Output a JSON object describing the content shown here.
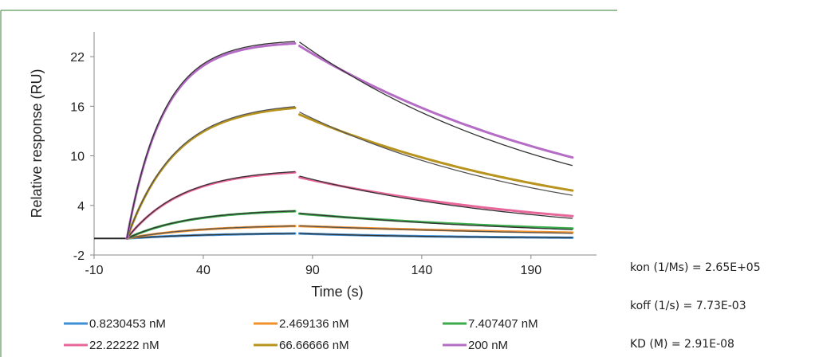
{
  "chart_data": {
    "type": "line",
    "title": "",
    "xlabel": "Time (s)",
    "ylabel": "Relative response (RU)",
    "xlim": [
      -10,
      220
    ],
    "ylim": [
      -2,
      25
    ],
    "xticks": [
      "-10",
      "40",
      "90",
      "140",
      "190"
    ],
    "yticks": [
      "-2",
      "4",
      "10",
      "16",
      "22"
    ],
    "grid": false,
    "legend_position": "bottom",
    "association_window": [
      5,
      82
    ],
    "dissociation_window": [
      84,
      209
    ],
    "series": [
      {
        "name": "0.8230453 nM",
        "color": "#3d8fd6",
        "fit_color": "#333333",
        "points": [
          [
            5,
            0
          ],
          [
            82,
            0.6
          ],
          [
            84,
            0.6
          ],
          [
            209,
            0.1
          ]
        ]
      },
      {
        "name": "2.469136 nM",
        "color": "#f2912b",
        "fit_color": "#555555",
        "points": [
          [
            5,
            0
          ],
          [
            82,
            1.5
          ],
          [
            84,
            1.5
          ],
          [
            209,
            0.7
          ]
        ]
      },
      {
        "name": "7.407407 nM",
        "color": "#3aaa4a",
        "fit_color": "#333333",
        "points": [
          [
            5,
            0
          ],
          [
            82,
            3.3
          ],
          [
            84,
            3.0
          ],
          [
            209,
            1.2
          ]
        ]
      },
      {
        "name": "22.22222 nM",
        "color": "#e8679b",
        "fit_color": "#333333",
        "points": [
          [
            5,
            0
          ],
          [
            82,
            8.0
          ],
          [
            84,
            7.4
          ],
          [
            209,
            2.7
          ]
        ]
      },
      {
        "name": "66.66666 nM",
        "color": "#b8941e",
        "fit_color": "#555555",
        "points": [
          [
            5,
            0
          ],
          [
            82,
            15.8
          ],
          [
            84,
            15.0
          ],
          [
            209,
            5.8
          ]
        ]
      },
      {
        "name": "200 nM",
        "color": "#b56cc4",
        "fit_color": "#333333",
        "points": [
          [
            5,
            0
          ],
          [
            82,
            23.6
          ],
          [
            84,
            23.3
          ],
          [
            209,
            9.8
          ]
        ]
      }
    ]
  },
  "kinetics": {
    "kon": "kon (1/Ms) = 2.65E+05",
    "koff": "koff (1/s) = 7.73E-03",
    "kd": "KD (M) = 2.91E-08"
  },
  "colors": {
    "panel_border": "#5a9a5a",
    "axis": "#888888"
  }
}
